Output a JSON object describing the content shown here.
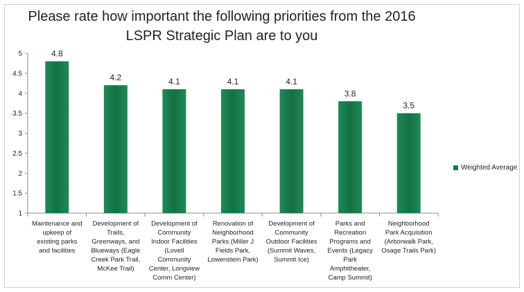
{
  "chart_data": {
    "type": "bar",
    "title": "Please rate how important the following priorities from the 2016 LSPR Strategic Plan are to you",
    "categories": [
      "Maintenance and upkeep of existing parks and facilities",
      "Development of Trails, Greenways, and Blueways (Eagle Creek Park Trail, McKee Trail)",
      "Development of Community Indoor Facilities (Lovell Community Center, Longview Comm Center)",
      "Renovation of Neighborhood Parks (Miller J Fields Park, Lowenstein Park)",
      "Development of Community Outdoor Facilities (Summit Waves, Summit Ice)",
      "Parks and Recreation Programs and Events (Legacy Park Amphitheater, Camp Summit)",
      "Neighborhood Park Acquisition (Arborwalk Park, Osage Trails Park)"
    ],
    "category_lines": [
      [
        "Maintenance and",
        "upkeep of",
        "existing parks",
        "and facilities"
      ],
      [
        "Development of",
        "Trails,",
        "Greenways, and",
        "Blueways (Eagle",
        "Creek Park Trail,",
        "McKee Trail)"
      ],
      [
        "Development of",
        "Community",
        "Indoor Facilities",
        "(Lovell",
        "Community",
        "Center, Longview",
        "Comm Center)"
      ],
      [
        "Renovation of",
        "Neighborhood",
        "Parks (Miller J",
        "Fields Park,",
        "Lowenstein Park)"
      ],
      [
        "Development of",
        "Community",
        "Outdoor Facilities",
        "(Summit Waves,",
        "Summit Ice)"
      ],
      [
        "Parks and",
        "Recreation",
        "Programs and",
        "Events (Legacy",
        "Park",
        "Amphitheater,",
        "Camp Summit)"
      ],
      [
        "Neighborhood",
        "Park Acquisition",
        "(Arborwalk Park,",
        "Osage Trails Park)"
      ]
    ],
    "series": [
      {
        "name": "Weighted Average",
        "values": [
          4.8,
          4.2,
          4.1,
          4.1,
          4.1,
          3.8,
          3.5
        ],
        "color": "#1a7a4a"
      }
    ],
    "data_labels": [
      "4.8",
      "4.2",
      "4.1",
      "4.1",
      "4.1",
      "3.8",
      "3.5"
    ],
    "y_ticks": [
      "1",
      "1.5",
      "2",
      "2.5",
      "3",
      "3.5",
      "4",
      "4.5",
      "5"
    ],
    "ylim": [
      1,
      5
    ],
    "grid": false,
    "legend": "right"
  }
}
